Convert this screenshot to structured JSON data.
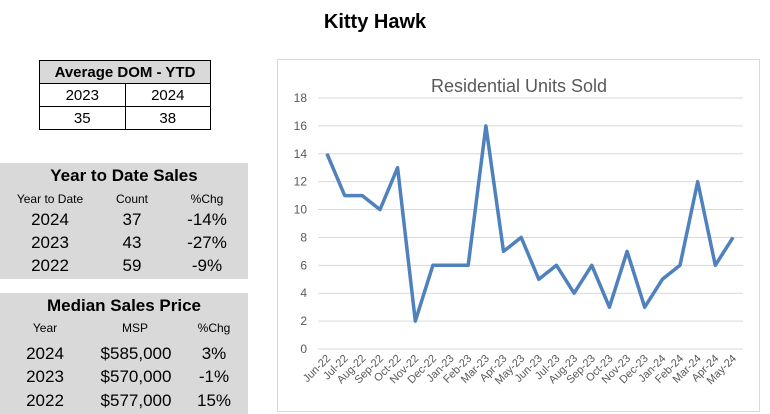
{
  "page": {
    "title": "Kitty Hawk"
  },
  "dom_table": {
    "header": "Average DOM - YTD",
    "years": [
      "2023",
      "2024"
    ],
    "values": [
      "35",
      "38"
    ]
  },
  "ytd": {
    "title": "Year to Date Sales",
    "col_year": "Year to Date",
    "col_count": "Count",
    "col_chg": "%Chg",
    "rows": [
      {
        "year": "2024",
        "count": "37",
        "chg": "-14%"
      },
      {
        "year": "2023",
        "count": "43",
        "chg": "-27%"
      },
      {
        "year": "2022",
        "count": "59",
        "chg": "-9%"
      }
    ]
  },
  "msp": {
    "title": "Median Sales Price",
    "col_year": "Year",
    "col_msp": "MSP",
    "col_chg": "%Chg",
    "rows": [
      {
        "year": "2024",
        "msp": "$585,000",
        "chg": "3%"
      },
      {
        "year": "2023",
        "msp": "$570,000",
        "chg": "-1%"
      },
      {
        "year": "2022",
        "msp": "$577,000",
        "chg": "15%"
      }
    ]
  },
  "colors": {
    "line": "#4f81bd",
    "grid": "#d9d9d9",
    "panel": "#d9d9d9",
    "axis_text": "#595959"
  },
  "chart_data": {
    "type": "line",
    "title": "Residential Units Sold",
    "xlabel": "",
    "ylabel": "",
    "ylim": [
      0,
      18
    ],
    "yticks": [
      0,
      2,
      4,
      6,
      8,
      10,
      12,
      14,
      16,
      18
    ],
    "grid": true,
    "legend": "none",
    "categories": [
      "Jun-22",
      "Jul-22",
      "Aug-22",
      "Sep-22",
      "Oct-22",
      "Nov-22",
      "Dec-22",
      "Jan-23",
      "Feb-23",
      "Mar-23",
      "Apr-23",
      "May-23",
      "Jun-23",
      "Jul-23",
      "Aug-23",
      "Sep-23",
      "Oct-23",
      "Nov-23",
      "Dec-23",
      "Jan-24",
      "Feb-24",
      "Mar-24",
      "Apr-24",
      "May-24"
    ],
    "series": [
      {
        "values": [
          14,
          11,
          11,
          10,
          13,
          2,
          6,
          6,
          6,
          16,
          7,
          8,
          5,
          6,
          4,
          6,
          3,
          7,
          3,
          5,
          6,
          12,
          6,
          8
        ]
      }
    ]
  }
}
